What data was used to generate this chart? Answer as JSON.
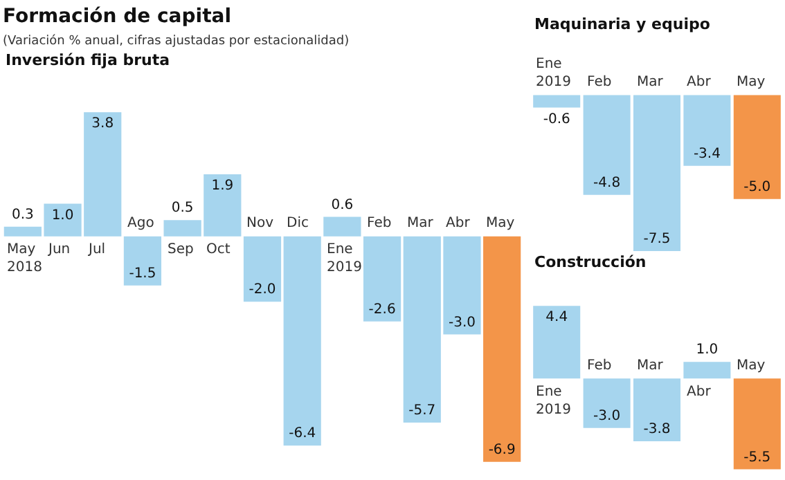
{
  "chart_data": [
    {
      "type": "other",
      "title": "Formación de capital",
      "subtitle": "(Variación % anual, cifras ajustadas por estacionalidad)"
    },
    {
      "type": "bar",
      "title": "Inversión fija bruta",
      "categories": [
        "May\n2018",
        "Jun",
        "Jul",
        "Ago",
        "Sep",
        "Oct",
        "Nov",
        "Dic",
        "Ene\n2019",
        "Feb",
        "Mar",
        "Abr",
        "May"
      ],
      "values": [
        0.3,
        1.0,
        3.8,
        -1.5,
        0.5,
        1.9,
        -2.0,
        -6.4,
        0.6,
        -2.6,
        -5.7,
        -3.0,
        -6.9
      ],
      "colors": [
        "#a6d5ee",
        "#a6d5ee",
        "#a6d5ee",
        "#a6d5ee",
        "#a6d5ee",
        "#a6d5ee",
        "#a6d5ee",
        "#a6d5ee",
        "#a6d5ee",
        "#a6d5ee",
        "#a6d5ee",
        "#a6d5ee",
        "#f39549"
      ],
      "value_labels": [
        "0.3",
        "1.0",
        "3.8",
        "-1.5",
        "0.5",
        "1.9",
        "-2.0",
        "-6.4",
        "0.6",
        "-2.6",
        "-5.7",
        "-3.0",
        "-6.9"
      ]
    },
    {
      "type": "bar",
      "title": "Maquinaria y equipo",
      "categories": [
        "Ene\n2019",
        "Feb",
        "Mar",
        "Abr",
        "May"
      ],
      "values": [
        -0.6,
        -4.8,
        -7.5,
        -3.4,
        -5.0
      ],
      "colors": [
        "#a6d5ee",
        "#a6d5ee",
        "#a6d5ee",
        "#a6d5ee",
        "#f39549"
      ],
      "value_labels": [
        "-0.6",
        "-4.8",
        "-7.5",
        "-3.4",
        "-5.0"
      ]
    },
    {
      "type": "bar",
      "title": "Construcción",
      "categories": [
        "Ene\n2019",
        "Feb",
        "Mar",
        "Abr",
        "May"
      ],
      "values": [
        4.4,
        -3.0,
        -3.8,
        1.0,
        -5.5
      ],
      "colors": [
        "#a6d5ee",
        "#a6d5ee",
        "#a6d5ee",
        "#a6d5ee",
        "#f39549"
      ],
      "value_labels": [
        "4.4",
        "-3.0",
        "-3.8",
        "1.0",
        "-5.5"
      ]
    }
  ]
}
